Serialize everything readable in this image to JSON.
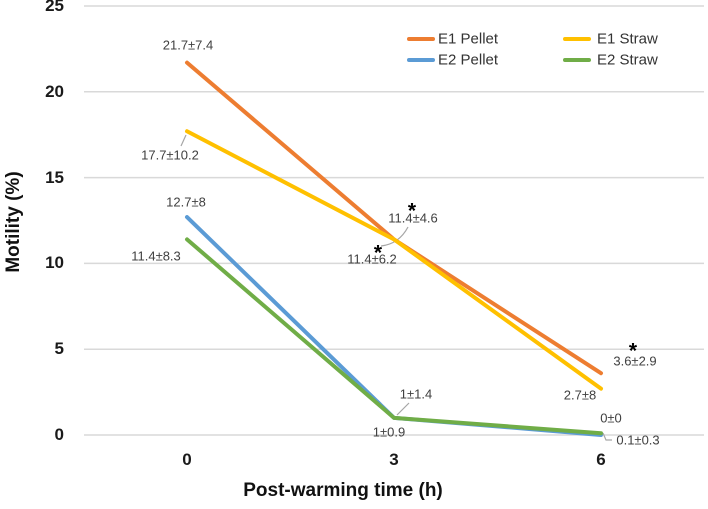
{
  "chart_data": {
    "type": "line",
    "title": "",
    "xlabel": "Post-warming time (h)",
    "ylabel": "Motility (%)",
    "x": [
      0,
      3,
      6
    ],
    "xtick_labels": [
      "0",
      "3",
      "6"
    ],
    "ylim": [
      0,
      25
    ],
    "yticks": [
      0,
      5,
      10,
      15,
      20,
      25
    ],
    "grid": true,
    "legend_position": "top-right-inside",
    "legend_rows": [
      [
        "E1 Pellet",
        "E1 Straw"
      ],
      [
        "E2 Pellet",
        "E2 Straw"
      ]
    ],
    "series": [
      {
        "name": "E1 Pellet",
        "color": "#ED7D31",
        "values": [
          21.7,
          11.4,
          3.6
        ],
        "point_labels": [
          "21.7±7.4",
          "11.4±4.6",
          "3.6±2.9"
        ]
      },
      {
        "name": "E1 Straw",
        "color": "#FFC000",
        "values": [
          17.7,
          11.4,
          2.7
        ],
        "point_labels": [
          "17.7±10.2",
          "11.4±6.2",
          "2.7±8"
        ]
      },
      {
        "name": "E2 Pellet",
        "color": "#5B9BD5",
        "values": [
          12.7,
          1,
          0
        ],
        "point_labels": [
          "12.7±8",
          "1±1.4",
          "0±0"
        ]
      },
      {
        "name": "E2 Straw",
        "color": "#70AD47",
        "values": [
          11.4,
          1,
          0.1
        ],
        "point_labels": [
          "11.4±8.3",
          "1±0.9",
          "0.1±0.3"
        ]
      }
    ],
    "significance_marker": "*",
    "significant_points": [
      {
        "series": 0,
        "point": 1,
        "label": "11.4±4.6"
      },
      {
        "series": 1,
        "point": 1,
        "label": "11.4±6.2"
      },
      {
        "series": 0,
        "point": 2,
        "label": "3.6±2.9"
      }
    ],
    "colors": {
      "gridline": "#D9D9D9",
      "data_label": "#404040",
      "axis_text": "#1A1A1A",
      "leader": "#A6A6A6",
      "legend_text": "#333333",
      "background": "#FFFFFF"
    }
  }
}
